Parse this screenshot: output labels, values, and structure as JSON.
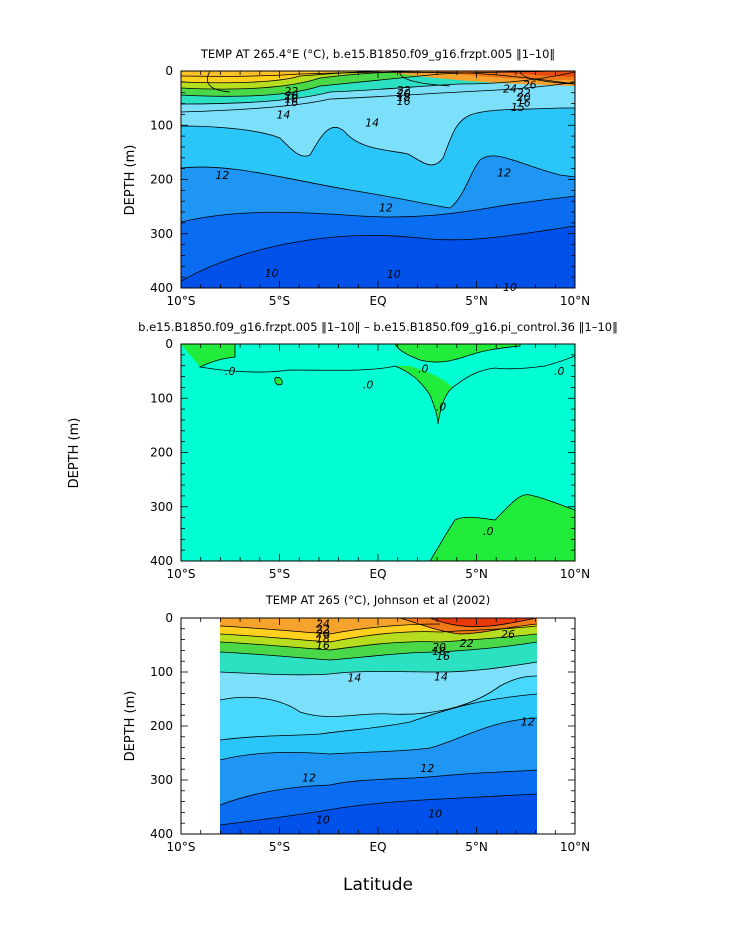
{
  "figure": {
    "xlabel": "Latitude"
  },
  "chart_data": [
    {
      "type": "heatmap",
      "title": "TEMP AT 265.4°E (°C), b.e15.B1850.f09_g16.frzpt.005 ‖1–10‖",
      "ylabel": "DEPTH (m)",
      "x_ticks": [
        "10°S",
        "5°S",
        "EQ",
        "5°N",
        "10°N"
      ],
      "x_tick_values": [
        -10,
        -5,
        0,
        5,
        10
      ],
      "y_ticks": [
        "0",
        "100",
        "200",
        "300",
        "400"
      ],
      "y_tick_values": [
        0,
        100,
        200,
        300,
        400
      ],
      "xlim": [
        -10,
        10
      ],
      "ylim": [
        400,
        0
      ],
      "contour_labels": [
        {
          "text": "22",
          "x": -4.4,
          "y": 37
        },
        {
          "text": "20",
          "x": -4.4,
          "y": 45
        },
        {
          "text": "18",
          "x": -4.4,
          "y": 51
        },
        {
          "text": "16",
          "x": -4.4,
          "y": 57
        },
        {
          "text": "14",
          "x": -4.8,
          "y": 80
        },
        {
          "text": "22",
          "x": 1.3,
          "y": 35
        },
        {
          "text": "20",
          "x": 1.3,
          "y": 41
        },
        {
          "text": "18",
          "x": 1.3,
          "y": 48
        },
        {
          "text": "16",
          "x": 1.3,
          "y": 55
        },
        {
          "text": "14",
          "x": -0.3,
          "y": 95
        },
        {
          "text": "24",
          "x": 6.7,
          "y": 32
        },
        {
          "text": "26",
          "x": 7.7,
          "y": 25
        },
        {
          "text": "22",
          "x": 7.4,
          "y": 40
        },
        {
          "text": "20",
          "x": 7.4,
          "y": 48
        },
        {
          "text": "16",
          "x": 7.4,
          "y": 58
        },
        {
          "text": "15",
          "x": 7.1,
          "y": 66
        },
        {
          "text": "12",
          "x": -7.9,
          "y": 192
        },
        {
          "text": "12",
          "x": 0.4,
          "y": 252
        },
        {
          "text": "12",
          "x": 6.4,
          "y": 187
        },
        {
          "text": "10",
          "x": -5.4,
          "y": 372
        },
        {
          "text": "10",
          "x": 0.8,
          "y": 374
        },
        {
          "text": "10",
          "x": 6.7,
          "y": 398
        }
      ]
    },
    {
      "type": "heatmap",
      "title": "b.e15.B1850.f09_g16.frzpt.005 ‖1–10‖ – b.e15.B1850.f09_g16.pi_control.36 ‖1–10‖",
      "ylabel": "DEPTH (m)",
      "x_ticks": [
        "10°S",
        "5°S",
        "EQ",
        "5°N",
        "10°N"
      ],
      "x_tick_values": [
        -10,
        -5,
        0,
        5,
        10
      ],
      "y_ticks": [
        "0",
        "100",
        "200",
        "300",
        "400"
      ],
      "y_tick_values": [
        0,
        100,
        200,
        300,
        400
      ],
      "xlim": [
        -10,
        10
      ],
      "ylim": [
        400,
        0
      ],
      "contour_labels": [
        {
          "text": ".0",
          "x": -7.5,
          "y": 50
        },
        {
          "text": ".0",
          "x": -0.5,
          "y": 75
        },
        {
          "text": ".0",
          "x": 2.3,
          "y": 45
        },
        {
          "text": ".0",
          "x": 9.2,
          "y": 50
        },
        {
          "text": ".0",
          "x": 3.2,
          "y": 115
        },
        {
          "text": ".0",
          "x": 5.6,
          "y": 345
        }
      ]
    },
    {
      "type": "heatmap",
      "title": "TEMP AT 265 (°C), Johnson et al (2002)",
      "ylabel": "DEPTH (m)",
      "x_ticks": [
        "10°S",
        "5°S",
        "EQ",
        "5°N",
        "10°N"
      ],
      "x_tick_values": [
        -10,
        -5,
        0,
        5,
        10
      ],
      "y_ticks": [
        "0",
        "100",
        "200",
        "300",
        "400"
      ],
      "y_tick_values": [
        0,
        100,
        200,
        300,
        400
      ],
      "xlim": [
        -10,
        10
      ],
      "ylim": [
        400,
        0
      ],
      "data_xrange": [
        -8,
        8
      ],
      "contour_labels": [
        {
          "text": "24",
          "x": -2.8,
          "y": 10
        },
        {
          "text": "22",
          "x": -2.8,
          "y": 20
        },
        {
          "text": "20",
          "x": -2.8,
          "y": 29
        },
        {
          "text": "18",
          "x": -2.8,
          "y": 38
        },
        {
          "text": "16",
          "x": -2.8,
          "y": 50
        },
        {
          "text": "14",
          "x": -1.2,
          "y": 110
        },
        {
          "text": "14",
          "x": 3.2,
          "y": 108
        },
        {
          "text": "26",
          "x": 6.6,
          "y": 30
        },
        {
          "text": "22",
          "x": 4.5,
          "y": 46
        },
        {
          "text": "20",
          "x": 3.1,
          "y": 54
        },
        {
          "text": "18",
          "x": 3.1,
          "y": 61
        },
        {
          "text": "16",
          "x": 3.3,
          "y": 70
        },
        {
          "text": "12",
          "x": 7.6,
          "y": 192
        },
        {
          "text": "12",
          "x": -3.5,
          "y": 295
        },
        {
          "text": "12",
          "x": 2.5,
          "y": 278
        },
        {
          "text": "10",
          "x": -2.8,
          "y": 373
        },
        {
          "text": "10",
          "x": 2.9,
          "y": 362
        }
      ]
    }
  ]
}
